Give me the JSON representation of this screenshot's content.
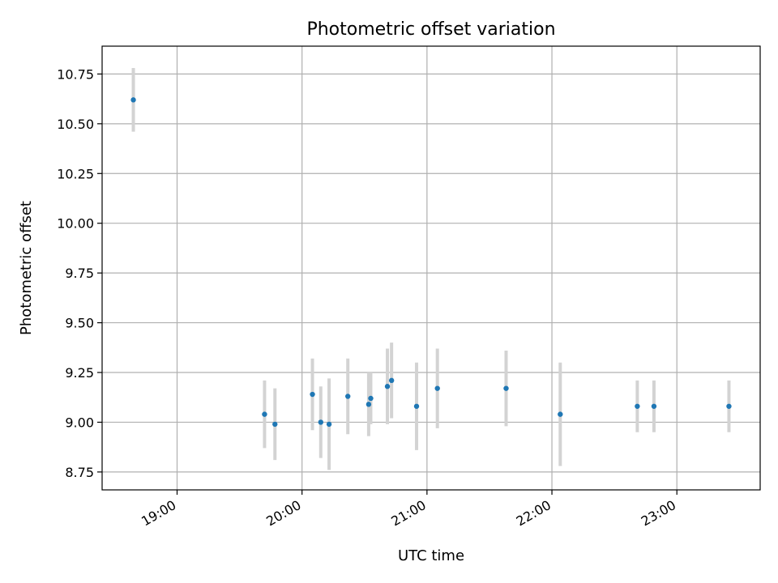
{
  "chart_data": {
    "type": "scatter",
    "title": "Photometric offset variation",
    "xlabel": "UTC time",
    "ylabel": "Photometric offset",
    "x_unit": "UTC time",
    "xlim": [
      "18:24",
      "23:40"
    ],
    "ylim": [
      8.66,
      10.89
    ],
    "x_ticks": [
      "19:00",
      "20:00",
      "21:00",
      "22:00",
      "23:00"
    ],
    "y_ticks": [
      "8.75",
      "9.00",
      "9.25",
      "9.50",
      "9.75",
      "10.00",
      "10.25",
      "10.50",
      "10.75"
    ],
    "grid": true,
    "points": [
      {
        "x": "18:39",
        "y": 10.62,
        "err": 0.16
      },
      {
        "x": "19:42",
        "y": 9.04,
        "err": 0.17
      },
      {
        "x": "19:47",
        "y": 8.99,
        "err": 0.18
      },
      {
        "x": "20:05",
        "y": 9.14,
        "err": 0.18
      },
      {
        "x": "20:09",
        "y": 9.0,
        "err": 0.18
      },
      {
        "x": "20:13",
        "y": 8.99,
        "err": 0.23
      },
      {
        "x": "20:22",
        "y": 9.13,
        "err": 0.19
      },
      {
        "x": "20:32",
        "y": 9.09,
        "err": 0.16
      },
      {
        "x": "20:33",
        "y": 9.12,
        "err": 0.13
      },
      {
        "x": "20:41",
        "y": 9.18,
        "err": 0.19
      },
      {
        "x": "20:43",
        "y": 9.21,
        "err": 0.19
      },
      {
        "x": "20:55",
        "y": 9.08,
        "err": 0.22
      },
      {
        "x": "21:05",
        "y": 9.17,
        "err": 0.2
      },
      {
        "x": "21:38",
        "y": 9.17,
        "err": 0.19
      },
      {
        "x": "22:04",
        "y": 9.04,
        "err": 0.26
      },
      {
        "x": "22:41",
        "y": 9.08,
        "err": 0.13
      },
      {
        "x": "22:49",
        "y": 9.08,
        "err": 0.13
      },
      {
        "x": "23:25",
        "y": 9.08,
        "err": 0.13
      }
    ],
    "colors": {
      "marker": "#1f77b4",
      "errorbar": "#d3d3d3",
      "grid": "#b0b0b0"
    }
  }
}
